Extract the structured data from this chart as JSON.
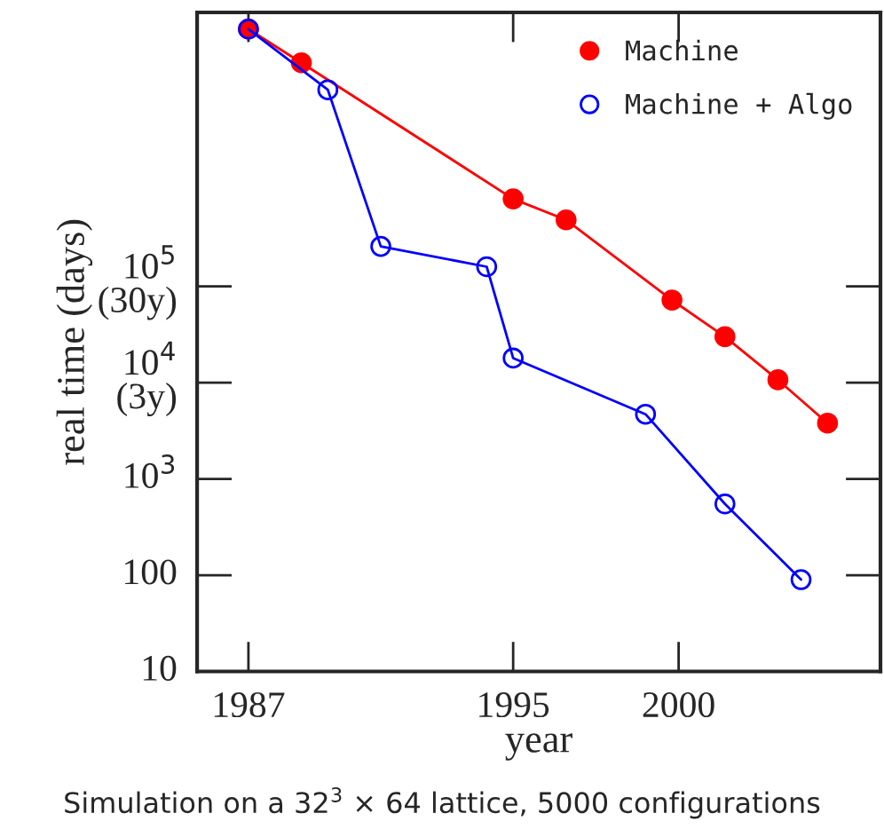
{
  "chart_data": {
    "type": "line",
    "xlabel": "year",
    "ylabel": "real time (days)",
    "annotations": [
      "Simulation on a 32$^{3}$ × 64 lattice, 5000 configurations"
    ],
    "log": "y",
    "marker": "circle",
    "line_style": "solid",
    "grid": false,
    "legend": "top right",
    "xlim": [
      1985.45,
      2006.1
    ],
    "ylim": [
      10,
      70000000
    ],
    "xticks": [
      1987,
      1995,
      2000
    ],
    "yticks": [
      10,
      100,
      {
        "value": 1000,
        "label": "10$^{3}$"
      },
      {
        "value": 10000,
        "label": "10$^{4}$\n(3y)"
      },
      {
        "value": 100000,
        "label": "10$^{5}$\n(30y)"
      }
    ],
    "series": [
      {
        "name": "Machine",
        "color": "#ff0000",
        "x": [
          1987,
          1988.6,
          1995,
          1996.6,
          1999.8,
          2001.4,
          2003,
          2004.5
        ],
        "values": [
          47000000,
          21000000,
          810000,
          490000,
          72000,
          30000,
          10700,
          3800
        ]
      },
      {
        "name": "Machine + Algo",
        "color": "#0000ff",
        "x": [
          1987,
          1989.4,
          1991,
          1994.2,
          1995,
          1999,
          2001.4,
          2003.7
        ],
        "values": [
          47000000,
          11000000,
          260000,
          160000,
          18000,
          4700,
          550,
          90
        ]
      }
    ]
  }
}
